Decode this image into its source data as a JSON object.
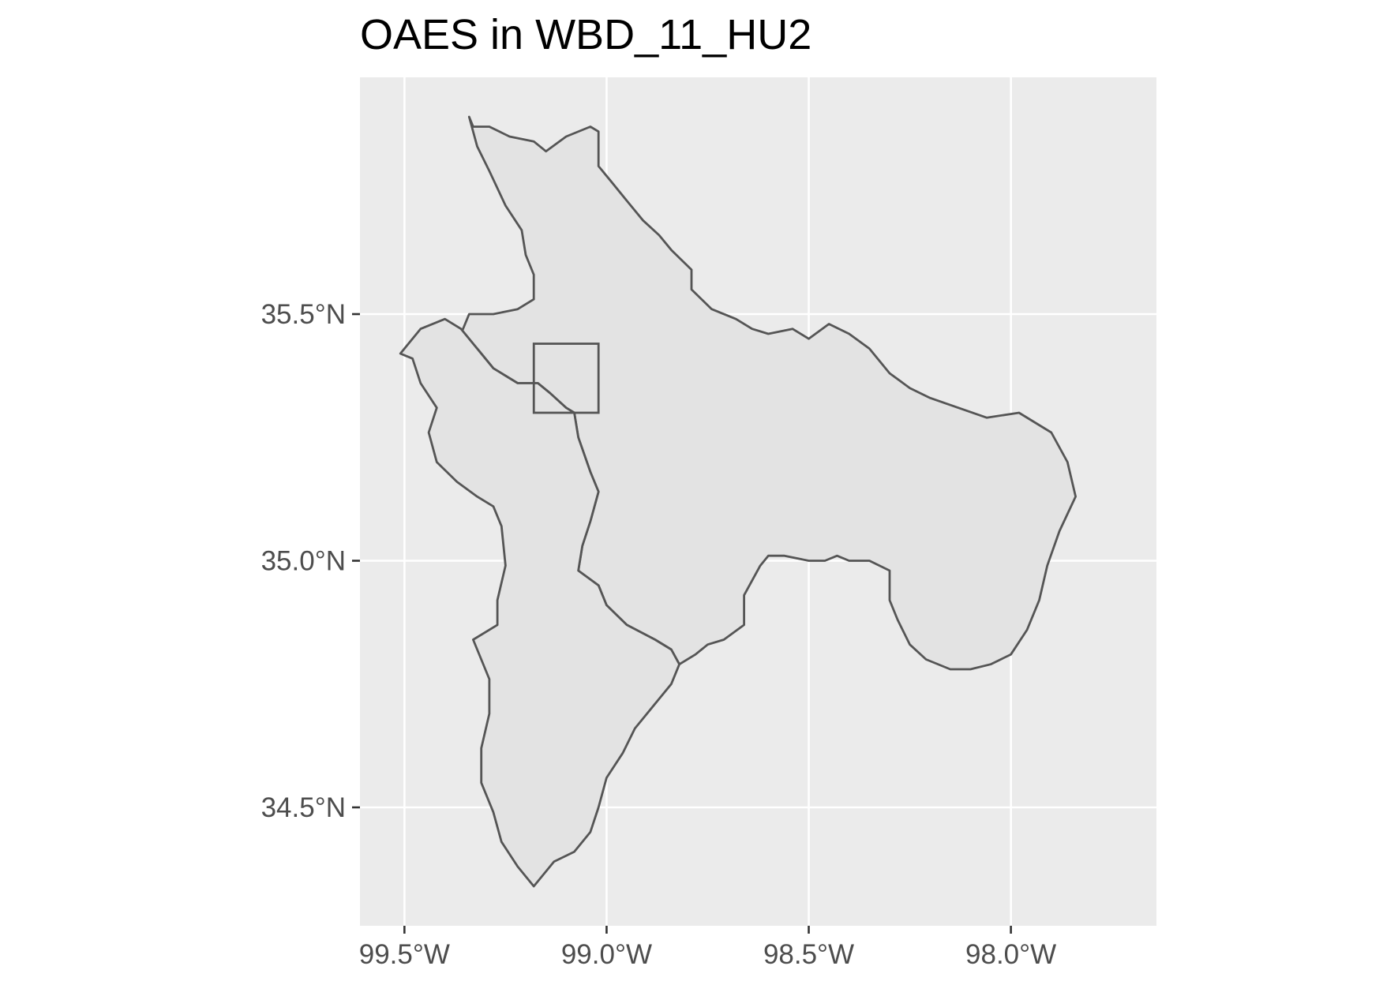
{
  "chart_data": {
    "type": "map",
    "title": "OAES in WBD_11_HU2",
    "xlabel": "",
    "ylabel": "",
    "x_ticks": [
      {
        "value": -99.5,
        "label": "99.5°W"
      },
      {
        "value": -99.0,
        "label": "99.0°W"
      },
      {
        "value": -98.5,
        "label": "98.5°W"
      },
      {
        "value": -98.0,
        "label": "98.0°W"
      }
    ],
    "y_ticks": [
      {
        "value": 35.5,
        "label": "35.5°N"
      },
      {
        "value": 35.0,
        "label": "35.0°N"
      },
      {
        "value": 34.5,
        "label": "34.5°N"
      }
    ],
    "xlim": [
      -99.61,
      -97.64
    ],
    "ylim": [
      34.26,
      35.98
    ],
    "grid": true,
    "colors": {
      "panel_background": "#ebebeb",
      "gridline": "#ffffff",
      "polygon_fill": "#e3e3e3",
      "polygon_outline": "#555555",
      "axis_text": "#4d4d4d",
      "title": "#000000"
    },
    "series": [
      {
        "type": "polygon",
        "coords": [
          [
            -99.34,
            35.9
          ],
          [
            -99.33,
            35.88
          ],
          [
            -99.29,
            35.88
          ],
          [
            -99.24,
            35.86
          ],
          [
            -99.18,
            35.85
          ],
          [
            -99.15,
            35.83
          ],
          [
            -99.1,
            35.86
          ],
          [
            -99.04,
            35.88
          ],
          [
            -99.02,
            35.87
          ],
          [
            -99.02,
            35.8
          ],
          [
            -98.99,
            35.77
          ],
          [
            -98.95,
            35.73
          ],
          [
            -98.91,
            35.69
          ],
          [
            -98.87,
            35.66
          ],
          [
            -98.84,
            35.63
          ],
          [
            -98.79,
            35.59
          ],
          [
            -98.79,
            35.55
          ],
          [
            -98.74,
            35.51
          ],
          [
            -98.68,
            35.49
          ],
          [
            -98.64,
            35.47
          ],
          [
            -98.6,
            35.46
          ],
          [
            -98.54,
            35.47
          ],
          [
            -98.5,
            35.45
          ],
          [
            -98.45,
            35.48
          ],
          [
            -98.4,
            35.46
          ],
          [
            -98.35,
            35.43
          ],
          [
            -98.3,
            35.38
          ],
          [
            -98.25,
            35.35
          ],
          [
            -98.2,
            35.33
          ],
          [
            -98.13,
            35.31
          ],
          [
            -98.06,
            35.29
          ],
          [
            -97.98,
            35.3
          ],
          [
            -97.9,
            35.26
          ],
          [
            -97.86,
            35.2
          ],
          [
            -97.84,
            35.13
          ],
          [
            -97.88,
            35.06
          ],
          [
            -97.91,
            34.99
          ],
          [
            -97.93,
            34.92
          ],
          [
            -97.96,
            34.86
          ],
          [
            -98.0,
            34.81
          ],
          [
            -98.05,
            34.79
          ],
          [
            -98.1,
            34.78
          ],
          [
            -98.15,
            34.78
          ],
          [
            -98.21,
            34.8
          ],
          [
            -98.25,
            34.83
          ],
          [
            -98.28,
            34.88
          ],
          [
            -98.3,
            34.92
          ],
          [
            -98.3,
            34.98
          ],
          [
            -98.35,
            35.0
          ],
          [
            -98.4,
            35.0
          ],
          [
            -98.43,
            35.01
          ],
          [
            -98.46,
            35.0
          ],
          [
            -98.5,
            35.0
          ],
          [
            -98.56,
            35.01
          ],
          [
            -98.6,
            35.01
          ],
          [
            -98.62,
            34.99
          ],
          [
            -98.66,
            34.93
          ],
          [
            -98.66,
            34.87
          ],
          [
            -98.71,
            34.84
          ],
          [
            -98.75,
            34.83
          ],
          [
            -98.78,
            34.81
          ],
          [
            -98.82,
            34.79
          ],
          [
            -98.84,
            34.82
          ],
          [
            -98.88,
            34.84
          ],
          [
            -98.95,
            34.87
          ],
          [
            -99.0,
            34.91
          ],
          [
            -99.02,
            34.95
          ],
          [
            -99.07,
            34.98
          ],
          [
            -99.06,
            35.03
          ],
          [
            -99.04,
            35.08
          ],
          [
            -99.02,
            35.14
          ],
          [
            -99.04,
            35.18
          ],
          [
            -99.07,
            35.25
          ],
          [
            -99.08,
            35.3
          ],
          [
            -99.1,
            35.31
          ],
          [
            -99.14,
            35.34
          ],
          [
            -99.17,
            35.36
          ],
          [
            -99.22,
            35.36
          ],
          [
            -99.28,
            35.39
          ],
          [
            -99.32,
            35.43
          ],
          [
            -99.36,
            35.46
          ],
          [
            -99.34,
            35.5
          ],
          [
            -99.28,
            35.5
          ],
          [
            -99.22,
            35.51
          ],
          [
            -99.18,
            35.53
          ],
          [
            -99.18,
            35.58
          ],
          [
            -99.2,
            35.62
          ],
          [
            -99.21,
            35.67
          ],
          [
            -99.25,
            35.72
          ],
          [
            -99.29,
            35.79
          ],
          [
            -99.32,
            35.84
          ],
          [
            -99.34,
            35.9
          ]
        ]
      },
      {
        "type": "polygon",
        "coords": [
          [
            -99.51,
            35.42
          ],
          [
            -99.46,
            35.47
          ],
          [
            -99.4,
            35.49
          ],
          [
            -99.36,
            35.47
          ],
          [
            -99.32,
            35.43
          ],
          [
            -99.28,
            35.39
          ],
          [
            -99.22,
            35.36
          ],
          [
            -99.17,
            35.36
          ],
          [
            -99.14,
            35.34
          ],
          [
            -99.1,
            35.31
          ],
          [
            -99.08,
            35.3
          ],
          [
            -99.07,
            35.25
          ],
          [
            -99.04,
            35.18
          ],
          [
            -99.02,
            35.14
          ],
          [
            -99.04,
            35.08
          ],
          [
            -99.06,
            35.03
          ],
          [
            -99.07,
            34.98
          ],
          [
            -99.02,
            34.95
          ],
          [
            -99.0,
            34.91
          ],
          [
            -98.95,
            34.87
          ],
          [
            -98.88,
            34.84
          ],
          [
            -98.84,
            34.82
          ],
          [
            -98.82,
            34.79
          ],
          [
            -98.84,
            34.75
          ],
          [
            -98.88,
            34.71
          ],
          [
            -98.93,
            34.66
          ],
          [
            -98.96,
            34.61
          ],
          [
            -99.0,
            34.56
          ],
          [
            -99.02,
            34.5
          ],
          [
            -99.04,
            34.45
          ],
          [
            -99.08,
            34.41
          ],
          [
            -99.13,
            34.39
          ],
          [
            -99.18,
            34.34
          ],
          [
            -99.22,
            34.38
          ],
          [
            -99.26,
            34.43
          ],
          [
            -99.28,
            34.49
          ],
          [
            -99.31,
            34.55
          ],
          [
            -99.31,
            34.62
          ],
          [
            -99.29,
            34.69
          ],
          [
            -99.29,
            34.76
          ],
          [
            -99.33,
            34.84
          ],
          [
            -99.27,
            34.87
          ],
          [
            -99.27,
            34.92
          ],
          [
            -99.25,
            34.99
          ],
          [
            -99.26,
            35.07
          ],
          [
            -99.28,
            35.11
          ],
          [
            -99.32,
            35.13
          ],
          [
            -99.37,
            35.16
          ],
          [
            -99.42,
            35.2
          ],
          [
            -99.44,
            35.26
          ],
          [
            -99.42,
            35.31
          ],
          [
            -99.46,
            35.36
          ],
          [
            -99.48,
            35.41
          ],
          [
            -99.51,
            35.42
          ]
        ]
      },
      {
        "type": "rectangle",
        "xmin": -99.18,
        "xmax": -99.02,
        "ymin": 35.3,
        "ymax": 35.44
      }
    ]
  }
}
